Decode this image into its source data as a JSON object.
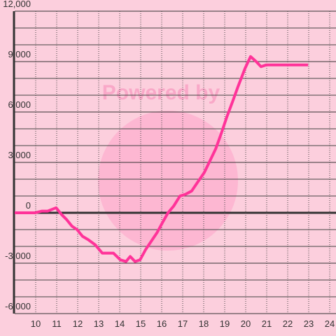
{
  "chart_data": {
    "type": "line",
    "watermark": "Powered by",
    "x": [
      9.0,
      9.97,
      10.3,
      10.57,
      10.97,
      11.23,
      11.47,
      11.73,
      11.97,
      12.23,
      12.5,
      12.83,
      13.17,
      13.7,
      14.03,
      14.3,
      14.5,
      14.73,
      14.97,
      15.23,
      15.5,
      15.77,
      16.03,
      16.3,
      16.57,
      16.87,
      17.13,
      17.43,
      17.7,
      18.03,
      18.3,
      18.57,
      18.83,
      19.1,
      19.37,
      19.63,
      19.97,
      20.23,
      20.5,
      20.73,
      20.97,
      22.97
    ],
    "series": [
      {
        "color": "#ff3399",
        "values": [
          0,
          0,
          100,
          100,
          300,
          -100,
          -400,
          -800,
          -1000,
          -1400,
          -1600,
          -1900,
          -2400,
          -2400,
          -2800,
          -2900,
          -2600,
          -2900,
          -2800,
          -2200,
          -1700,
          -1200,
          -600,
          0,
          400,
          1000,
          1100,
          1300,
          1800,
          2400,
          3100,
          3800,
          4700,
          5700,
          6600,
          7500,
          8600,
          9300,
          9000,
          8700,
          8800,
          8800
        ]
      }
    ],
    "xlim": [
      9,
      24.3
    ],
    "xticks": [
      10,
      11,
      12,
      13,
      14,
      15,
      16,
      17,
      18,
      19,
      20,
      21,
      22,
      23,
      24
    ],
    "ylim": [
      -6000,
      12000
    ],
    "yticks": [
      {
        "value": -6000,
        "label": "-6,000"
      },
      {
        "value": -3000,
        "label": "-3,000"
      },
      0,
      {
        "value": 3000,
        "label": "3,000"
      },
      {
        "value": 6000,
        "label": "6,000"
      },
      {
        "value": 9000,
        "label": "9,000"
      },
      {
        "value": 12000,
        "label": "12,000"
      }
    ],
    "y_minor_ticks": [
      -5000,
      -4000,
      -2000,
      -1000,
      1000,
      2000,
      4000,
      5000,
      7000,
      8000,
      10000,
      11000
    ],
    "grid": true
  }
}
